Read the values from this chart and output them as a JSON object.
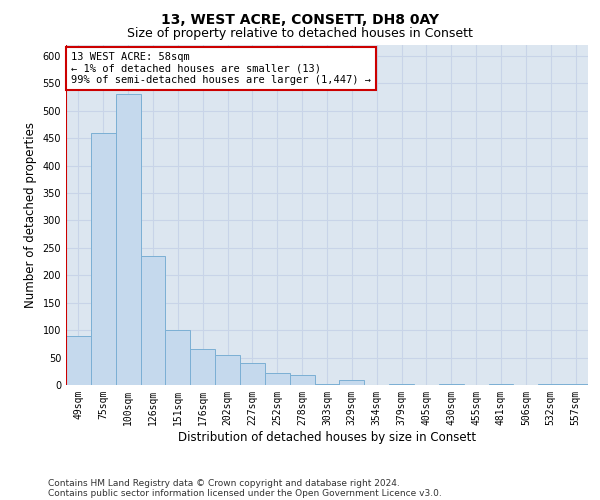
{
  "title_line1": "13, WEST ACRE, CONSETT, DH8 0AY",
  "title_line2": "Size of property relative to detached houses in Consett",
  "xlabel": "Distribution of detached houses by size in Consett",
  "ylabel": "Number of detached properties",
  "categories": [
    "49sqm",
    "75sqm",
    "100sqm",
    "126sqm",
    "151sqm",
    "176sqm",
    "202sqm",
    "227sqm",
    "252sqm",
    "278sqm",
    "303sqm",
    "329sqm",
    "354sqm",
    "379sqm",
    "405sqm",
    "430sqm",
    "455sqm",
    "481sqm",
    "506sqm",
    "532sqm",
    "557sqm"
  ],
  "values": [
    90,
    460,
    530,
    235,
    100,
    65,
    55,
    40,
    22,
    18,
    1,
    10,
    0,
    1,
    0,
    1,
    0,
    1,
    0,
    1,
    1
  ],
  "bar_color": "#c5d9ed",
  "bar_edge_color": "#7bafd4",
  "highlight_color": "#cc0000",
  "annotation_line1": "13 WEST ACRE: 58sqm",
  "annotation_line2": "← 1% of detached houses are smaller (13)",
  "annotation_line3": "99% of semi-detached houses are larger (1,447) →",
  "annotation_box_facecolor": "#ffffff",
  "annotation_box_edgecolor": "#cc0000",
  "ylim": [
    0,
    620
  ],
  "yticks": [
    0,
    50,
    100,
    150,
    200,
    250,
    300,
    350,
    400,
    450,
    500,
    550,
    600
  ],
  "grid_color": "#c8d4e8",
  "background_color": "#dce6f0",
  "footer_line1": "Contains HM Land Registry data © Crown copyright and database right 2024.",
  "footer_line2": "Contains public sector information licensed under the Open Government Licence v3.0.",
  "title_fontsize": 10,
  "subtitle_fontsize": 9,
  "axis_label_fontsize": 8.5,
  "tick_fontsize": 7,
  "annotation_fontsize": 7.5,
  "footer_fontsize": 6.5
}
